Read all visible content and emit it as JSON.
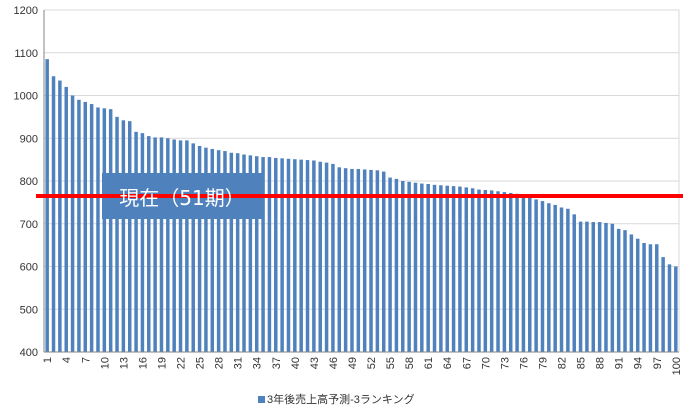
{
  "chart_data": {
    "type": "bar",
    "categories": [
      "1",
      "2",
      "3",
      "4",
      "5",
      "6",
      "7",
      "8",
      "9",
      "10",
      "11",
      "12",
      "13",
      "14",
      "15",
      "16",
      "17",
      "18",
      "19",
      "20",
      "21",
      "22",
      "23",
      "24",
      "25",
      "26",
      "27",
      "28",
      "29",
      "30",
      "31",
      "32",
      "33",
      "34",
      "35",
      "36",
      "37",
      "38",
      "39",
      "40",
      "41",
      "42",
      "43",
      "44",
      "45",
      "46",
      "47",
      "48",
      "49",
      "50",
      "51",
      "52",
      "53",
      "54",
      "55",
      "56",
      "57",
      "58",
      "59",
      "60",
      "61",
      "62",
      "63",
      "64",
      "65",
      "66",
      "67",
      "68",
      "69",
      "70",
      "71",
      "72",
      "73",
      "74",
      "75",
      "76",
      "77",
      "78",
      "79",
      "80",
      "81",
      "82",
      "83",
      "84",
      "85",
      "86",
      "87",
      "88",
      "89",
      "90",
      "91",
      "92",
      "93",
      "94",
      "95",
      "96",
      "97",
      "98",
      "99",
      "100"
    ],
    "tick_labels": [
      "1",
      "4",
      "7",
      "10",
      "13",
      "16",
      "19",
      "22",
      "25",
      "28",
      "31",
      "34",
      "37",
      "40",
      "43",
      "46",
      "49",
      "52",
      "55",
      "58",
      "61",
      "64",
      "67",
      "70",
      "73",
      "76",
      "79",
      "82",
      "85",
      "88",
      "91",
      "94",
      "97",
      "100"
    ],
    "series": [
      {
        "name": "3年後売上高予測-3ランキング",
        "color": "#4F81BD",
        "values": [
          1085,
          1045,
          1035,
          1020,
          1000,
          990,
          985,
          980,
          972,
          970,
          968,
          950,
          942,
          940,
          915,
          912,
          905,
          902,
          902,
          900,
          897,
          895,
          895,
          888,
          882,
          878,
          875,
          872,
          870,
          866,
          865,
          862,
          860,
          858,
          856,
          856,
          854,
          853,
          852,
          851,
          850,
          849,
          848,
          845,
          843,
          840,
          832,
          830,
          828,
          828,
          827,
          826,
          825,
          822,
          808,
          805,
          800,
          798,
          796,
          794,
          793,
          791,
          790,
          789,
          788,
          787,
          785,
          783,
          780,
          779,
          778,
          776,
          774,
          772,
          770,
          768,
          763,
          757,
          753,
          748,
          744,
          738,
          735,
          722,
          705,
          705,
          704,
          704,
          702,
          700,
          688,
          685,
          675,
          665,
          655,
          652,
          652,
          622,
          605,
          600
        ]
      }
    ],
    "ylim": [
      400,
      1200
    ],
    "yticks": [
      400,
      500,
      600,
      700,
      800,
      900,
      1000,
      1100,
      1200
    ],
    "grid": true,
    "legend_position": "bottom",
    "reference_line": {
      "value": 765,
      "color": "#FF0000"
    },
    "annotation": {
      "text": "現在（51期）",
      "bg_color": "#4F81BD",
      "text_color": "#FFFFFF"
    }
  }
}
